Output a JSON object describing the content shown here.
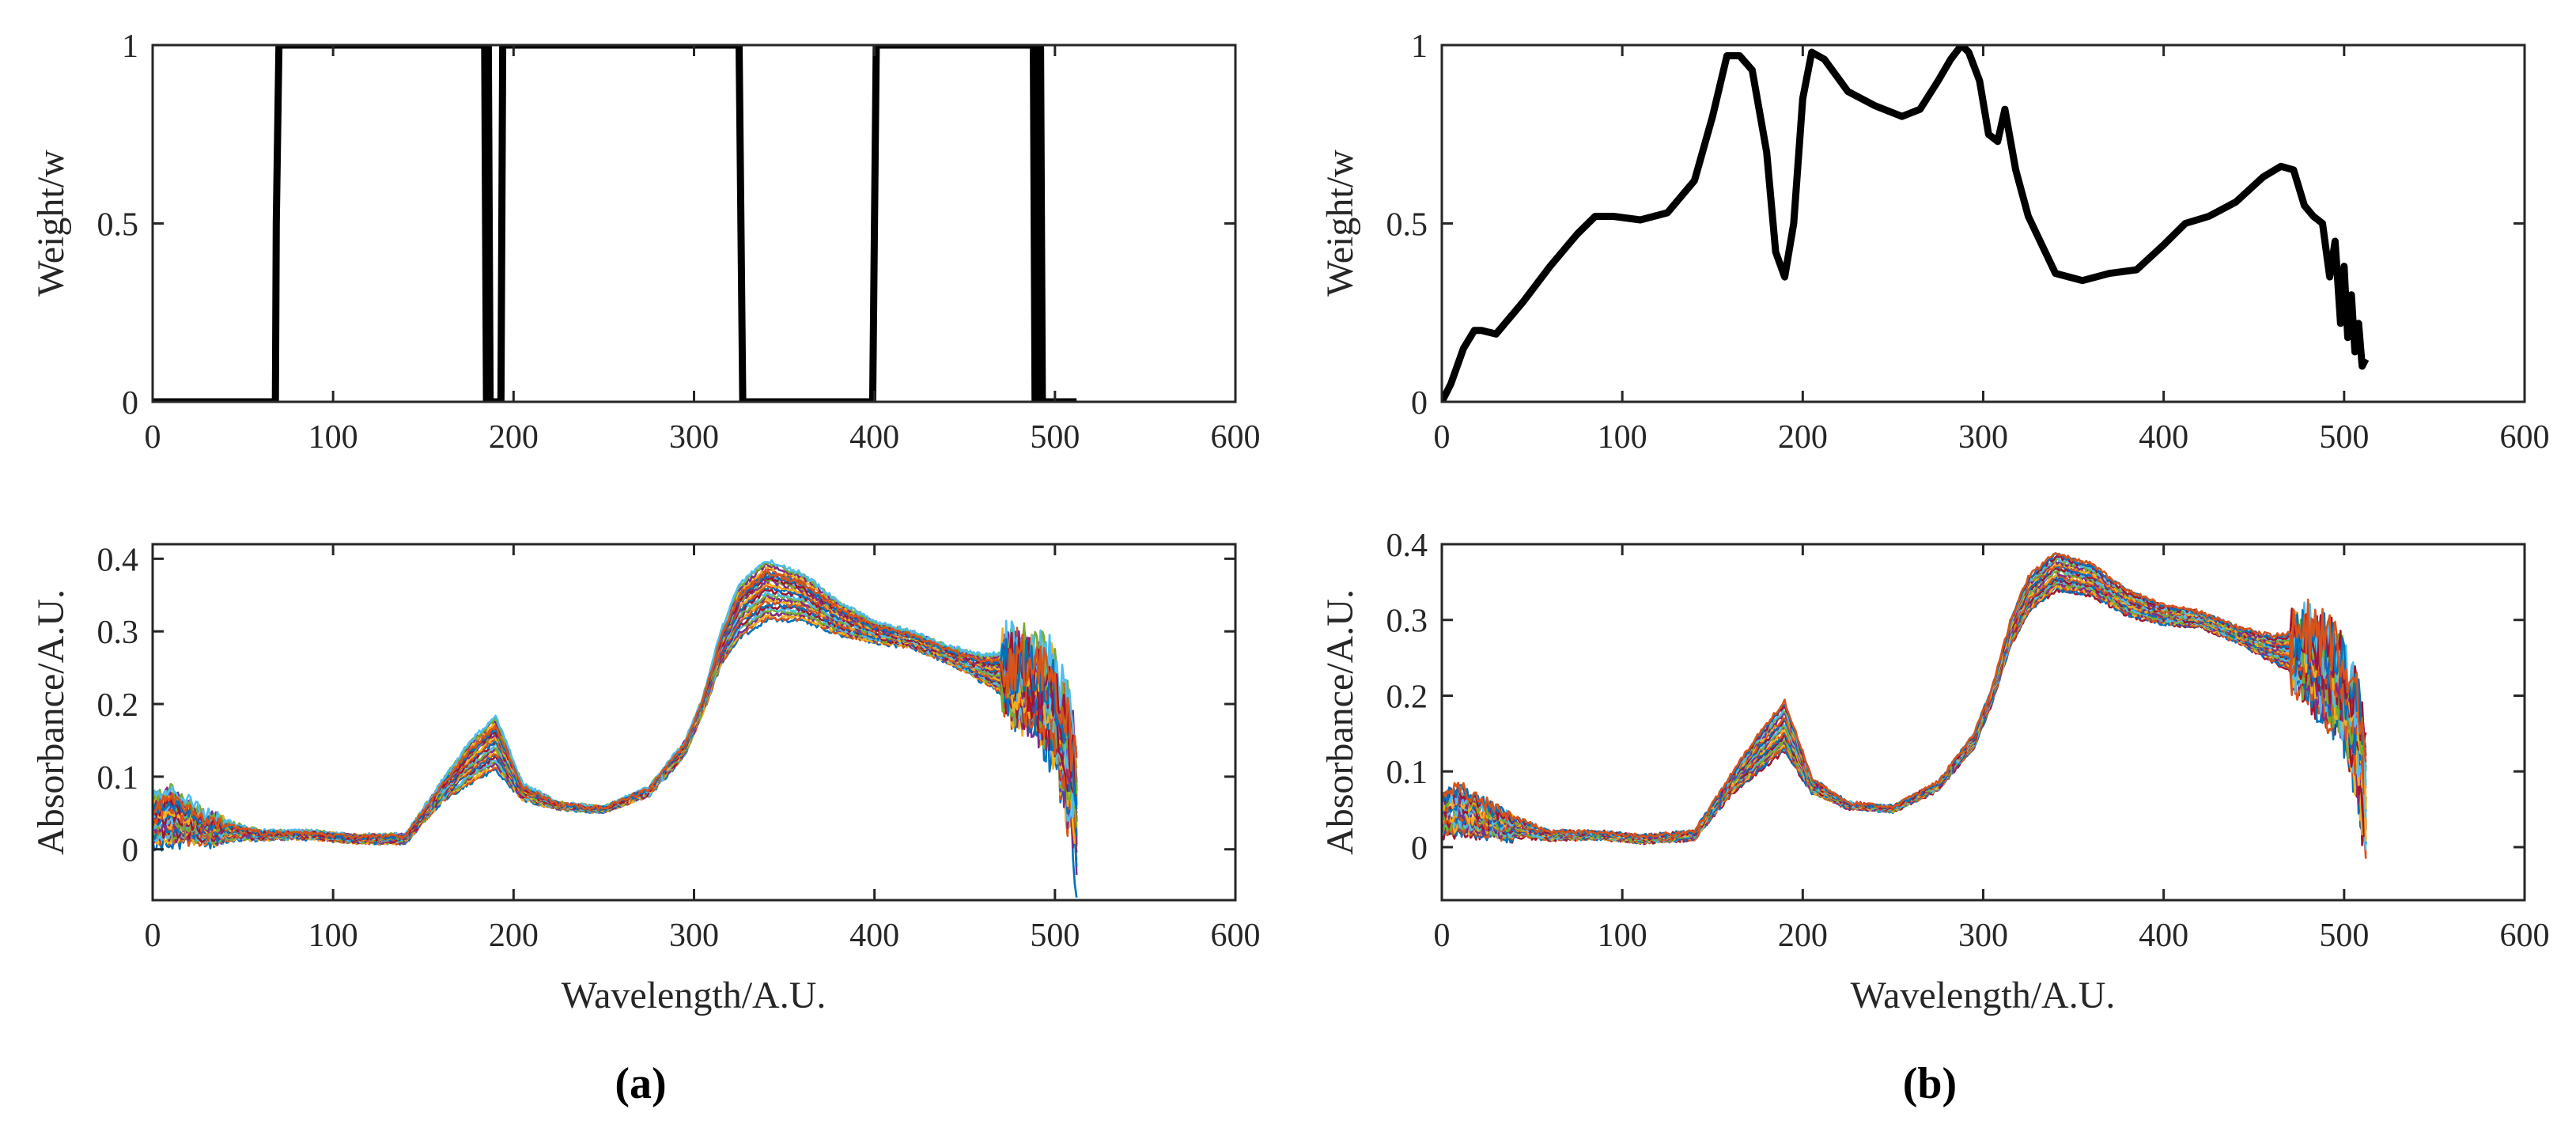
{
  "figure": {
    "panel_labels": [
      "(a)",
      "(b)"
    ]
  },
  "chart_data": [
    {
      "id": "a-top",
      "type": "line",
      "panel": "(a)",
      "title": "",
      "xlabel": "",
      "ylabel": "Weight/w",
      "xlim": [
        0,
        600
      ],
      "ylim": [
        0,
        1
      ],
      "xticks": [
        0,
        100,
        200,
        300,
        400,
        500,
        600
      ],
      "yticks": [
        0,
        0.5,
        1
      ],
      "ytick_labels": [
        "0",
        "0.5",
        "1"
      ],
      "series": [
        {
          "name": "weight",
          "color": "#000000",
          "x": [
            0,
            68,
            68.5,
            70,
            72,
            184,
            185,
            186,
            187,
            190,
            193,
            194,
            325,
            327,
            399,
            401,
            488,
            489,
            490,
            491,
            492,
            493,
            494,
            512
          ],
          "y": [
            0,
            0,
            0.5,
            1,
            1,
            1,
            0,
            1,
            0,
            0,
            0,
            1,
            1,
            0,
            0,
            1,
            1,
            0,
            1,
            0,
            1,
            0,
            0,
            0
          ]
        }
      ]
    },
    {
      "id": "a-bottom",
      "type": "line",
      "panel": "(a)",
      "title": "",
      "xlabel": "Wavelength/A.U.",
      "ylabel": "Absorbance/A.U.",
      "xlim": [
        0,
        600
      ],
      "ylim": [
        -0.07,
        0.42
      ],
      "xticks": [
        0,
        100,
        200,
        300,
        400,
        500,
        600
      ],
      "yticks": [
        0,
        0.1,
        0.2,
        0.3,
        0.4
      ],
      "ytick_labels": [
        "0",
        "0.1",
        "0.2",
        "0.3",
        "0.4"
      ],
      "spectra": {
        "n_series": 30,
        "x_start": 0,
        "x_end": 512,
        "colors": [
          "#0072BD",
          "#D95319",
          "#EDB120",
          "#7E2F8E",
          "#77AC30",
          "#4DBEEE",
          "#A2142F"
        ],
        "mean_profile": {
          "x": [
            0,
            10,
            30,
            60,
            90,
            110,
            140,
            160,
            175,
            190,
            205,
            225,
            250,
            275,
            295,
            305,
            315,
            325,
            340,
            360,
            380,
            400,
            420,
            440,
            460,
            480,
            500,
            510,
            512
          ],
          "y": [
            0.04,
            0.05,
            0.03,
            0.02,
            0.02,
            0.015,
            0.015,
            0.08,
            0.12,
            0.15,
            0.08,
            0.06,
            0.055,
            0.08,
            0.14,
            0.2,
            0.28,
            0.33,
            0.36,
            0.35,
            0.32,
            0.3,
            0.29,
            0.27,
            0.25,
            0.24,
            0.2,
            0.1,
            0.05
          ]
        },
        "variation_profile": {
          "x": [
            0,
            10,
            30,
            60,
            90,
            110,
            140,
            160,
            175,
            190,
            205,
            225,
            250,
            275,
            295,
            305,
            315,
            325,
            340,
            360,
            380,
            400,
            420,
            440,
            460,
            480,
            500,
            510,
            512
          ],
          "y": [
            0.035,
            0.04,
            0.02,
            0.006,
            0.005,
            0.005,
            0.006,
            0.015,
            0.03,
            0.04,
            0.012,
            0.004,
            0.003,
            0.006,
            0.01,
            0.012,
            0.025,
            0.04,
            0.045,
            0.035,
            0.025,
            0.015,
            0.012,
            0.012,
            0.02,
            0.04,
            0.06,
            0.08,
            0.08
          ]
        }
      }
    },
    {
      "id": "b-top",
      "type": "line",
      "panel": "(b)",
      "title": "",
      "xlabel": "",
      "ylabel": "Weight/w",
      "xlim": [
        0,
        600
      ],
      "ylim": [
        0,
        1
      ],
      "xticks": [
        0,
        100,
        200,
        300,
        400,
        500,
        600
      ],
      "yticks": [
        0,
        0.5,
        1
      ],
      "ytick_labels": [
        "0",
        "0.5",
        "1"
      ],
      "series": [
        {
          "name": "weight",
          "color": "#000000",
          "x": [
            0,
            5,
            12,
            18,
            22,
            30,
            45,
            60,
            75,
            85,
            95,
            110,
            125,
            140,
            150,
            158,
            165,
            172,
            180,
            185,
            190,
            195,
            200,
            205,
            212,
            225,
            240,
            255,
            265,
            275,
            282,
            288,
            292,
            298,
            303,
            308,
            312,
            318,
            325,
            340,
            355,
            370,
            385,
            400,
            412,
            425,
            440,
            455,
            465,
            472,
            478,
            483,
            488,
            492,
            495,
            498,
            500,
            502,
            504,
            506,
            508,
            510,
            512
          ],
          "y": [
            0,
            0.05,
            0.15,
            0.2,
            0.2,
            0.19,
            0.28,
            0.38,
            0.47,
            0.52,
            0.52,
            0.51,
            0.53,
            0.62,
            0.8,
            0.97,
            0.97,
            0.93,
            0.7,
            0.42,
            0.35,
            0.5,
            0.85,
            0.98,
            0.96,
            0.87,
            0.83,
            0.8,
            0.82,
            0.9,
            0.96,
            1.0,
            0.98,
            0.9,
            0.75,
            0.73,
            0.82,
            0.65,
            0.52,
            0.36,
            0.34,
            0.36,
            0.37,
            0.44,
            0.5,
            0.52,
            0.56,
            0.63,
            0.66,
            0.65,
            0.55,
            0.52,
            0.5,
            0.35,
            0.45,
            0.22,
            0.38,
            0.18,
            0.3,
            0.14,
            0.22,
            0.1,
            0.12
          ]
        }
      ]
    },
    {
      "id": "b-bottom",
      "type": "line",
      "panel": "(b)",
      "title": "",
      "xlabel": "Wavelength/A.U.",
      "ylabel": "Absorbance/A.U.",
      "xlim": [
        0,
        600
      ],
      "ylim": [
        -0.07,
        0.4
      ],
      "xticks": [
        0,
        100,
        200,
        300,
        400,
        500,
        600
      ],
      "yticks": [
        0,
        0.1,
        0.2,
        0.3,
        0.4
      ],
      "ytick_labels": [
        "0",
        "0.1",
        "0.2",
        "0.3",
        "0.4"
      ],
      "spectra": {
        "n_series": 30,
        "x_start": 0,
        "x_end": 512,
        "colors": [
          "#0072BD",
          "#D95319",
          "#EDB120",
          "#7E2F8E",
          "#77AC30",
          "#4DBEEE",
          "#A2142F"
        ],
        "mean_profile": {
          "x": [
            0,
            10,
            30,
            60,
            90,
            110,
            140,
            160,
            175,
            190,
            205,
            225,
            250,
            275,
            295,
            305,
            315,
            325,
            340,
            360,
            380,
            400,
            420,
            440,
            460,
            480,
            500,
            510,
            512
          ],
          "y": [
            0.04,
            0.045,
            0.03,
            0.015,
            0.015,
            0.01,
            0.015,
            0.08,
            0.12,
            0.155,
            0.08,
            0.055,
            0.05,
            0.08,
            0.14,
            0.2,
            0.28,
            0.33,
            0.36,
            0.35,
            0.32,
            0.305,
            0.3,
            0.28,
            0.26,
            0.25,
            0.2,
            0.1,
            0.05
          ]
        },
        "variation_profile": {
          "x": [
            0,
            10,
            30,
            60,
            90,
            110,
            140,
            160,
            175,
            190,
            205,
            225,
            250,
            275,
            295,
            305,
            315,
            325,
            340,
            360,
            380,
            400,
            420,
            440,
            460,
            480,
            500,
            510,
            512
          ],
          "y": [
            0.03,
            0.035,
            0.02,
            0.006,
            0.005,
            0.005,
            0.006,
            0.015,
            0.03,
            0.04,
            0.012,
            0.004,
            0.003,
            0.006,
            0.01,
            0.012,
            0.02,
            0.03,
            0.03,
            0.025,
            0.02,
            0.015,
            0.012,
            0.012,
            0.02,
            0.04,
            0.06,
            0.08,
            0.08
          ]
        }
      }
    }
  ]
}
